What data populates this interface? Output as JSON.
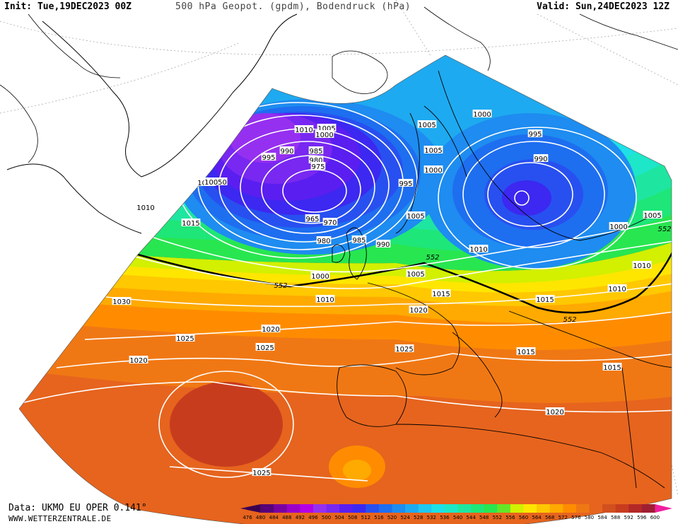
{
  "header": {
    "init": "Init: Tue,19DEC2023 00Z",
    "title": "500 hPa Geopot. (gpdm), Bodendruck (hPa)",
    "valid": "Valid: Sun,24DEC2023 12Z"
  },
  "footer": {
    "data_source": "Data: UKMO EU OPER 0.141°",
    "website": "WWW.WETTERZENTRALE.DE"
  },
  "colorbar": {
    "values": [
      "476",
      "480",
      "484",
      "488",
      "492",
      "496",
      "500",
      "504",
      "508",
      "512",
      "516",
      "520",
      "524",
      "528",
      "532",
      "536",
      "540",
      "544",
      "548",
      "552",
      "556",
      "560",
      "564",
      "568",
      "572",
      "576",
      "580",
      "584",
      "588",
      "592",
      "596",
      "600"
    ],
    "colors": [
      "#3c0050",
      "#5a0078",
      "#7a00a0",
      "#9a00c8",
      "#b400e6",
      "#9630f0",
      "#7828f0",
      "#5a1ef0",
      "#3c28f0",
      "#2850f0",
      "#1e6ef0",
      "#1e8cf0",
      "#1eaaf0",
      "#1ec8f0",
      "#1ee0e6",
      "#1ee6c8",
      "#1ee6a0",
      "#1ee678",
      "#28e650",
      "#64e628",
      "#d2f000",
      "#ffe600",
      "#ffc800",
      "#ffaa00",
      "#ff8c00",
      "#f07814",
      "#e6641e",
      "#d2501e",
      "#c83c1e",
      "#b42828",
      "#a01e32",
      "#f01ea0"
    ]
  },
  "pressure_labels": [
    {
      "text": "1010"
    },
    {
      "text": "1005"
    },
    {
      "text": "1000"
    },
    {
      "text": "995"
    },
    {
      "text": "990"
    },
    {
      "text": "985"
    },
    {
      "text": "980"
    },
    {
      "text": "975"
    },
    {
      "text": "965"
    },
    {
      "text": "970"
    },
    {
      "text": "980"
    },
    {
      "text": "985"
    },
    {
      "text": "990"
    },
    {
      "text": "1010"
    },
    {
      "text": "1005"
    },
    {
      "text": "1005"
    },
    {
      "text": "1005"
    },
    {
      "text": "1000"
    },
    {
      "text": "995"
    },
    {
      "text": "990"
    },
    {
      "text": "995"
    },
    {
      "text": "1000"
    },
    {
      "text": "1005"
    },
    {
      "text": "1005"
    },
    {
      "text": "1000"
    },
    {
      "text": "1010"
    },
    {
      "text": "1010"
    },
    {
      "text": "1010"
    },
    {
      "text": "1015"
    },
    {
      "text": "1000"
    },
    {
      "text": "1010"
    },
    {
      "text": "1005"
    },
    {
      "text": "1015"
    },
    {
      "text": "1020"
    },
    {
      "text": "1015"
    },
    {
      "text": "1030"
    },
    {
      "text": "1020"
    },
    {
      "text": "1025"
    },
    {
      "text": "1025"
    },
    {
      "text": "1025"
    },
    {
      "text": "1020"
    },
    {
      "text": "1015"
    },
    {
      "text": "1020"
    },
    {
      "text": "1025"
    },
    {
      "text": "1010"
    },
    {
      "text": "1015"
    },
    {
      "text": "10050"
    }
  ],
  "geopotential_labels": [
    {
      "text": "552"
    },
    {
      "text": "552"
    },
    {
      "text": "552"
    },
    {
      "text": "552"
    }
  ],
  "colors": {
    "land_outline": "#000000",
    "isobar": "#ffffff",
    "contour_552": "#000000",
    "grid": "#888888"
  }
}
